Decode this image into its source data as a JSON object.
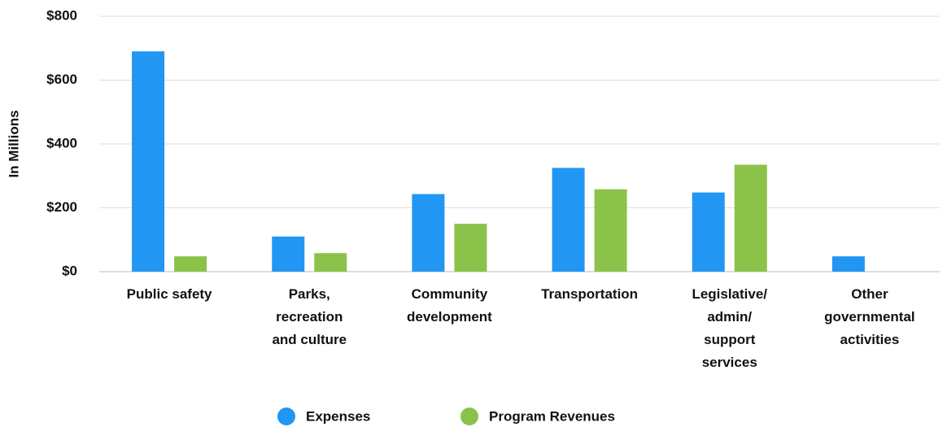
{
  "chart_data": {
    "type": "bar",
    "y_label": "In Millions",
    "categories": [
      "Public safety",
      "Parks, recreation and culture",
      "Community development",
      "Transportation",
      "Legislative/ admin/ support services",
      "Other governmental activities"
    ],
    "series": [
      {
        "name": "Expenses",
        "color": "#2196f3",
        "values": [
          690,
          110,
          243,
          325,
          248,
          48
        ]
      },
      {
        "name": "Program Revenues",
        "color": "#8bc34a",
        "values": [
          48,
          58,
          150,
          258,
          335,
          0
        ]
      }
    ],
    "ylim": [
      0,
      800
    ],
    "yticks": [
      {
        "value": 0,
        "label": "$0"
      },
      {
        "value": 200,
        "label": "$200"
      },
      {
        "value": 400,
        "label": "$400"
      },
      {
        "value": 600,
        "label": "$600"
      },
      {
        "value": 800,
        "label": "$800"
      }
    ],
    "grid": true,
    "legend": "bottom"
  }
}
